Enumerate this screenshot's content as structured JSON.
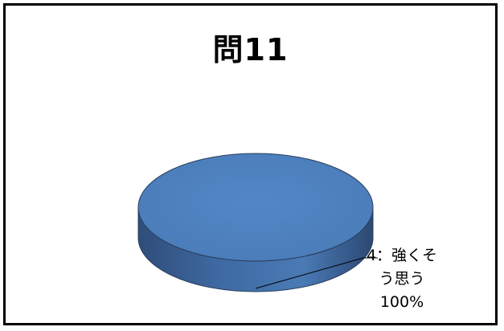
{
  "chart_data": {
    "type": "pie",
    "title": "問11",
    "slices": [
      {
        "label": "4：強くそう思う",
        "value": 100,
        "label_line1": "4：強くそ",
        "label_line2": "う思う",
        "percent_text": "100%"
      }
    ],
    "three_d": true,
    "colors": {
      "top": "#4f81bd",
      "side_dark": "#2c4a75",
      "side_mid": "#3d669d",
      "side_light": "#4a78b2",
      "outline": "#2a3f5f"
    }
  }
}
